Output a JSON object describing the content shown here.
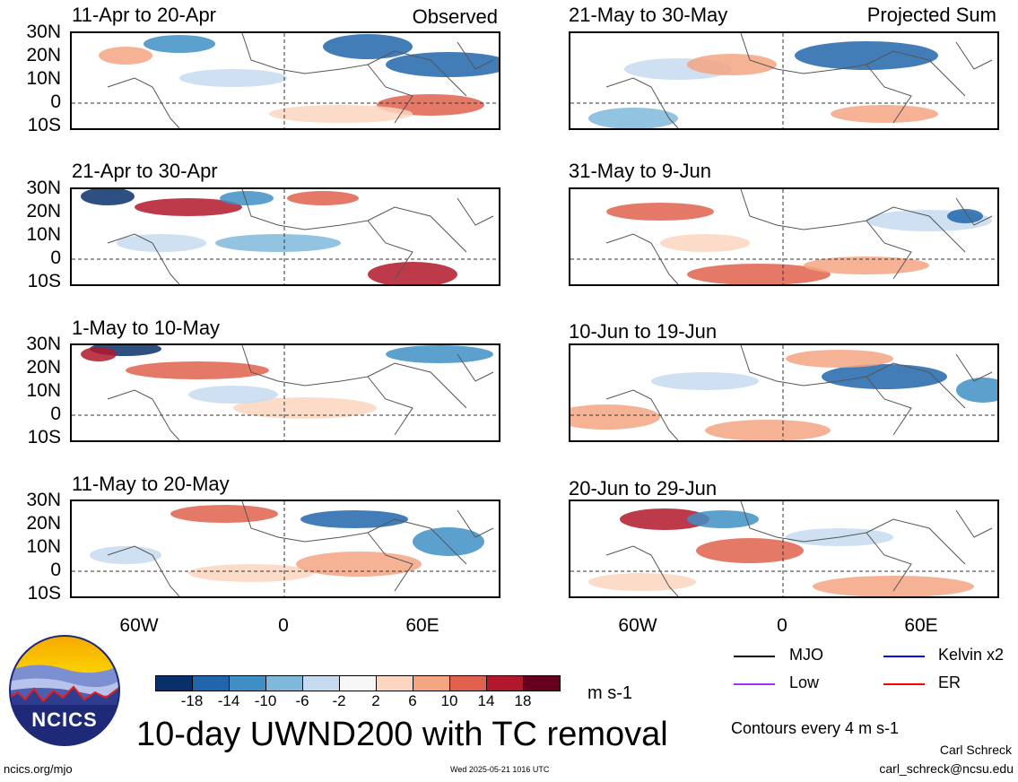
{
  "left_column": {
    "label": "Observed",
    "panels": [
      {
        "title": "11-Apr to 20-Apr"
      },
      {
        "title": "21-Apr to 30-Apr"
      },
      {
        "title": "1-May to 10-May"
      },
      {
        "title": "11-May to 20-May"
      }
    ]
  },
  "right_column": {
    "label": "Projected Sum",
    "panels": [
      {
        "title": "21-May to 30-May"
      },
      {
        "title": "31-May to 9-Jun"
      },
      {
        "title": "10-Jun to 19-Jun"
      },
      {
        "title": "20-Jun to 29-Jun"
      }
    ]
  },
  "axes": {
    "lat_ticks": [
      "30N",
      "20N",
      "10N",
      "0",
      "10S"
    ],
    "lon_ticks": [
      "60W",
      "0",
      "60E"
    ]
  },
  "colorbar": {
    "unit": "m s-1",
    "ticks": [
      "-18",
      "-14",
      "-10",
      "-6",
      "-2",
      "2",
      "6",
      "10",
      "14",
      "18"
    ],
    "colors": [
      "#08306b",
      "#2166ac",
      "#3f8fc5",
      "#7fb8da",
      "#c6dbef",
      "#f7f7f7",
      "#fcd6c0",
      "#f4a582",
      "#e0614e",
      "#b2182b",
      "#67001f"
    ]
  },
  "legend": {
    "items": [
      {
        "label": "MJO",
        "color": "#000000"
      },
      {
        "label": "Kelvin x2",
        "color": "#0000ff"
      },
      {
        "label": "Low",
        "color": "#9933ff"
      },
      {
        "label": "ER",
        "color": "#ff0000"
      }
    ],
    "contour_note": "Contours every 4 m s-1"
  },
  "footer": {
    "main_title": "10-day UWND200 with TC removal",
    "logo_text": "NCICS",
    "url": "ncics.org/mjo",
    "timestamp": "Wed 2025-05-21 1016 UTC",
    "author": "Carl Schreck",
    "email": "carl_schreck@ncsu.edu"
  }
}
